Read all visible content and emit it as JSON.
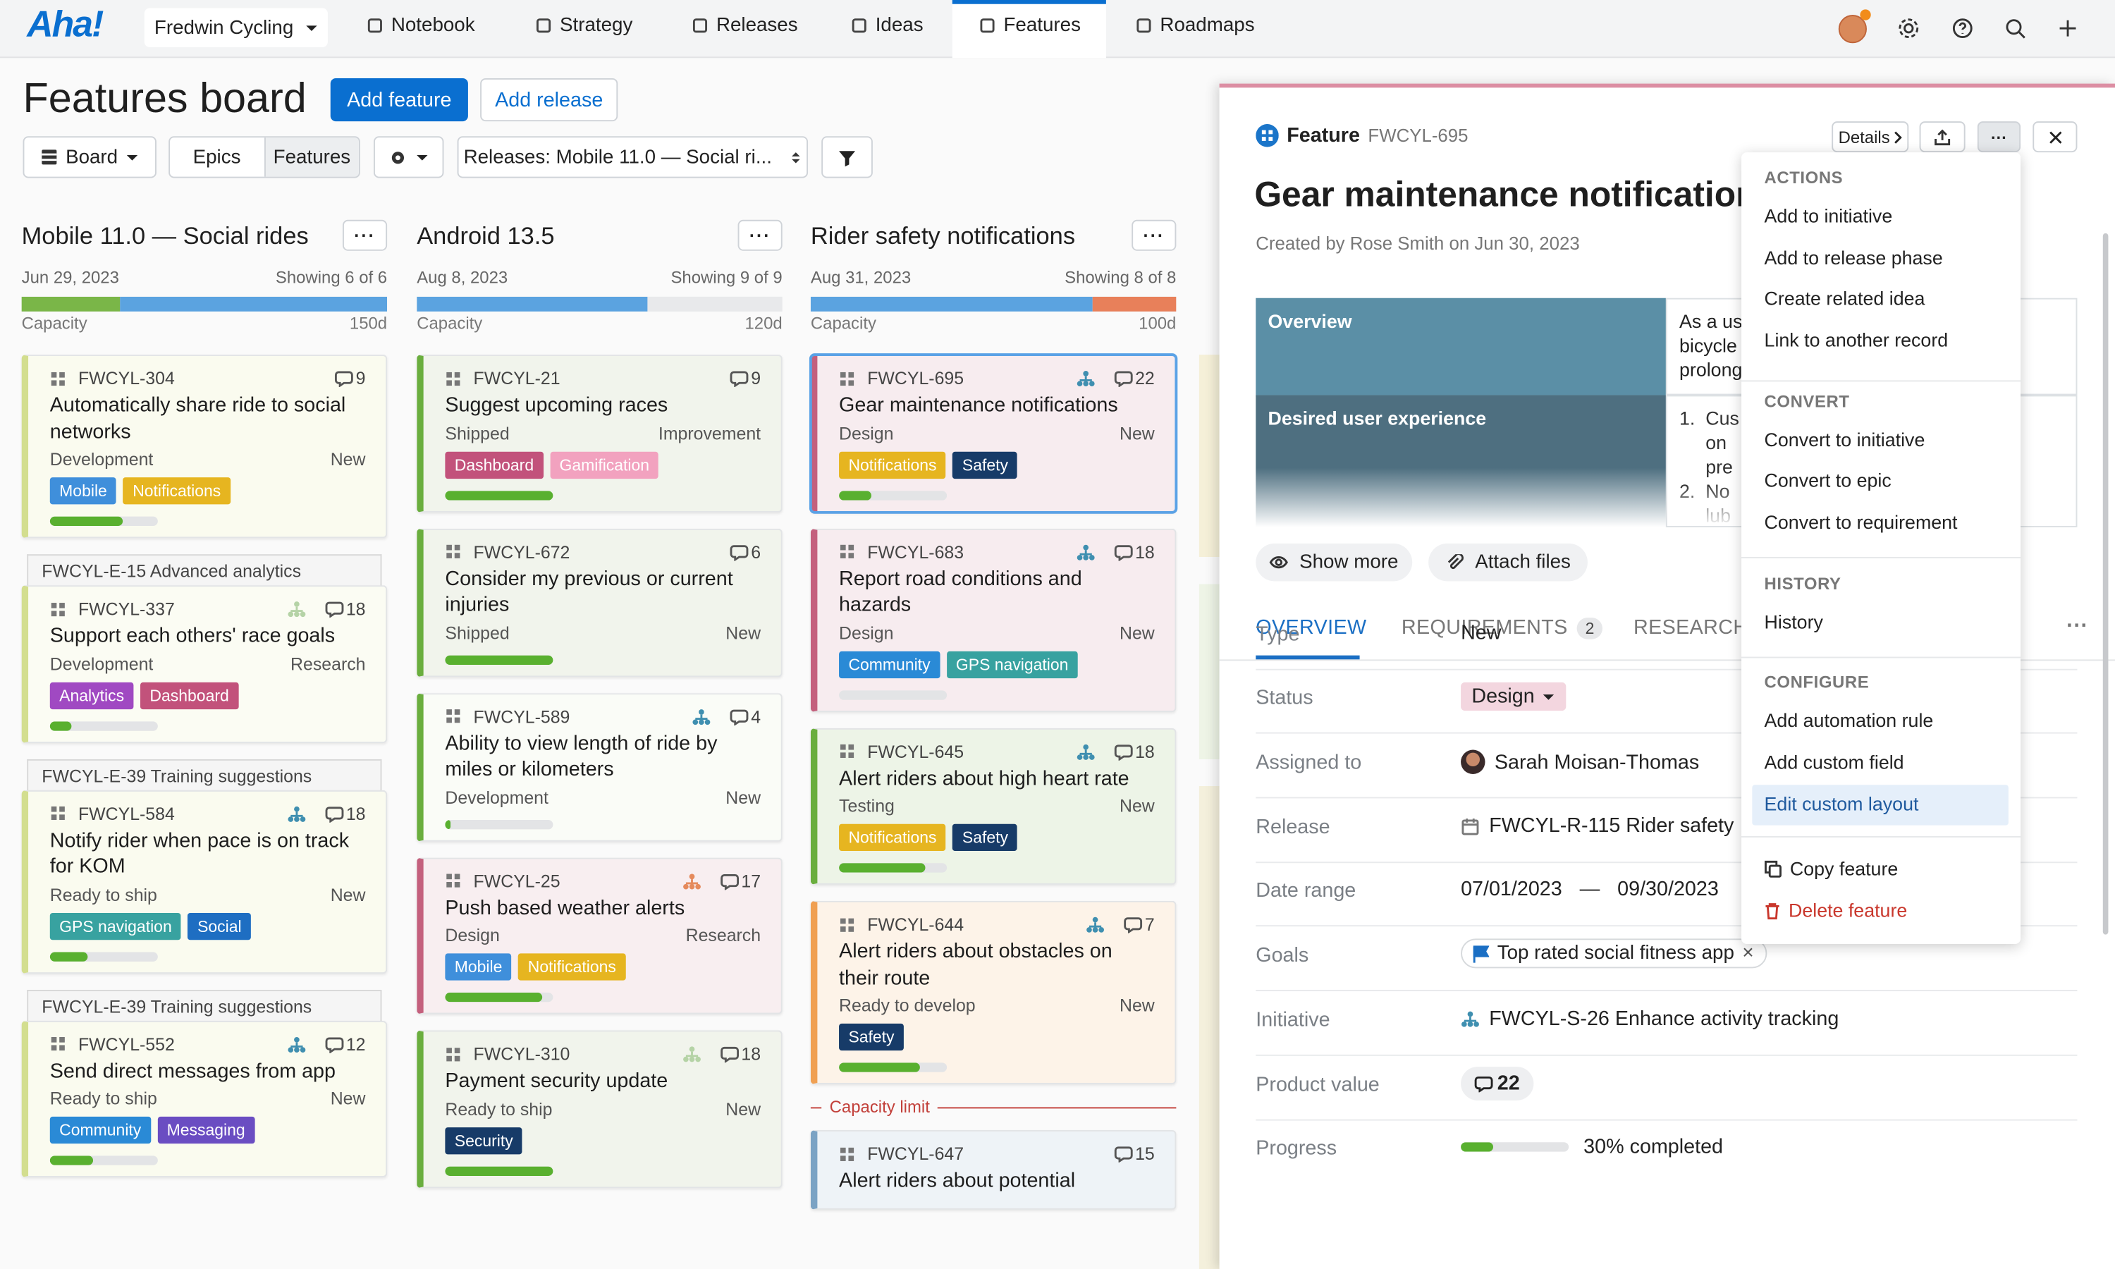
{
  "nav": {
    "logo": "Aha!",
    "workspace": "Fredwin Cycling",
    "tabs": [
      "Notebook",
      "Strategy",
      "Releases",
      "Ideas",
      "Features",
      "Roadmaps"
    ],
    "active_tab": 4
  },
  "header": {
    "title": "Features board",
    "buttons": [
      "Add feature",
      "Add release"
    ],
    "view": "Board",
    "toggle": [
      "Epics",
      "Features"
    ],
    "active_toggle": 1,
    "releases_filter": "Releases: Mobile 11.0 — Social ri..."
  },
  "columns": [
    {
      "name": "Mobile 11.0 — Social rides",
      "date": "Jun 29, 2023",
      "showing": "Showing 6 of 6",
      "capacity_label": "Capacity",
      "capacity": "150d",
      "usage": [
        {
          "color": "#7ab648",
          "fraction": 0.27
        },
        {
          "color": "#5ba3e0",
          "fraction": 0.73
        }
      ],
      "items": [
        {
          "card": {
            "id": "FWCYL-304",
            "score": 9,
            "title": "Automatically share ride to social networks",
            "status": "Development",
            "type": "New",
            "tags": [
              {
                "name": "Mobile",
                "color": "#3f8fdb"
              },
              {
                "name": "Notifications",
                "color": "#e6b520"
              }
            ],
            "progress": 0.68,
            "color": "#d3de8f",
            "bg": "#fafbef"
          }
        },
        {
          "epic": "FWCYL-E-15 Advanced analytics",
          "card": {
            "id": "FWCYL-337",
            "score": 18,
            "title": "Support each others' race goals",
            "status": "Development",
            "type": "Research",
            "tags": [
              {
                "name": "Analytics",
                "color": "#a049c2"
              },
              {
                "name": "Dashboard",
                "color": "#c2527b"
              }
            ],
            "progress": 0.2,
            "color": "#d3de8f",
            "bg": "#fbfcf3",
            "icon": "#b5d3a6"
          }
        },
        {
          "epic": "FWCYL-E-39 Training suggestions",
          "card": {
            "id": "FWCYL-584",
            "score": 18,
            "title": "Notify rider when pace is on track for KOM",
            "status": "Ready to ship",
            "type": "New",
            "tags": [
              {
                "name": "GPS navigation",
                "color": "#38a2a0"
              },
              {
                "name": "Social",
                "color": "#1e6ec2"
              }
            ],
            "progress": 0.35,
            "color": "#d3de8f",
            "bg": "#fafbef",
            "icon": "#3f8fb0"
          }
        },
        {
          "epic": "FWCYL-E-39 Training suggestions",
          "card": {
            "id": "FWCYL-552",
            "score": 12,
            "title": "Send direct messages from app",
            "status": "Ready to ship",
            "type": "New",
            "tags": [
              {
                "name": "Community",
                "color": "#2a8ad6"
              },
              {
                "name": "Messaging",
                "color": "#6a4dc2"
              }
            ],
            "progress": 0.4,
            "color": "#d3de8f",
            "bg": "#fafbef",
            "icon": "#3f8fb0"
          }
        }
      ]
    },
    {
      "name": "Android 13.5",
      "date": "Aug 8, 2023",
      "showing": "Showing 9 of 9",
      "capacity_label": "Capacity",
      "capacity": "120d",
      "usage": [
        {
          "color": "#5ba3e0",
          "fraction": 0.63
        }
      ],
      "items": [
        {
          "card": {
            "id": "FWCYL-21",
            "score": 9,
            "title": "Suggest upcoming races",
            "status": "Shipped",
            "type": "Improvement",
            "tags": [
              {
                "name": "Dashboard",
                "color": "#c2527b"
              },
              {
                "name": "Gamification",
                "color": "#f2a2bf"
              }
            ],
            "progress": 1,
            "color": "#6aae3e",
            "bg": "#f1f4ec"
          }
        },
        {
          "card": {
            "id": "FWCYL-672",
            "score": 6,
            "title": "Consider my previous or current injuries",
            "status": "Shipped",
            "type": "New",
            "tags": [],
            "progress": 1,
            "color": "#6aae3e",
            "bg": "#f1f4ec"
          }
        },
        {
          "card": {
            "id": "FWCYL-589",
            "score": 4,
            "title": "Ability to view length of ride by miles or kilometers",
            "status": "Development",
            "type": "New",
            "tags": [],
            "progress": 0.05,
            "color": "#6aae3e",
            "bg": "#fafcf7",
            "icon": "#3f8fb0"
          }
        },
        {
          "card": {
            "id": "FWCYL-25",
            "score": 17,
            "title": "Push based weather alerts",
            "status": "Design",
            "type": "Research",
            "tags": [
              {
                "name": "Mobile",
                "color": "#3f8fdb"
              },
              {
                "name": "Notifications",
                "color": "#e6b520"
              }
            ],
            "progress": 0.9,
            "color": "#c4607d",
            "bg": "#f8eef0",
            "icon": "#e58a5c"
          }
        },
        {
          "card": {
            "id": "FWCYL-310",
            "score": 18,
            "title": "Payment security update",
            "status": "Ready to ship",
            "type": "New",
            "tags": [
              {
                "name": "Security",
                "color": "#173b68"
              }
            ],
            "progress": 1,
            "color": "#6aae3e",
            "bg": "#f1f4ec",
            "icon": "#b5d3a6"
          }
        }
      ]
    },
    {
      "name": "Rider safety notifications",
      "date": "Aug 31, 2023",
      "showing": "Showing 8 of 8",
      "capacity_label": "Capacity",
      "capacity": "100d",
      "usage": [
        {
          "color": "#5ba3e0",
          "fraction": 0.77
        },
        {
          "color": "#e8805a",
          "fraction": 0.23
        }
      ],
      "items": [
        {
          "card": {
            "id": "FWCYL-695",
            "score": 22,
            "title": "Gear maintenance notifications",
            "status": "Design",
            "type": "New",
            "tags": [
              {
                "name": "Notifications",
                "color": "#e6b520"
              },
              {
                "name": "Safety",
                "color": "#173b68"
              }
            ],
            "progress": 0.3,
            "color": "#c4607d",
            "bg": "#f7ecef",
            "icon": "#3f8fb0",
            "selected": true
          }
        },
        {
          "card": {
            "id": "FWCYL-683",
            "score": 18,
            "title": "Report road conditions and hazards",
            "status": "Design",
            "type": "New",
            "tags": [
              {
                "name": "Community",
                "color": "#2a8ad6"
              },
              {
                "name": "GPS navigation",
                "color": "#38a2a0"
              }
            ],
            "progress": 0,
            "color": "#c4607d",
            "bg": "#f7ecef",
            "icon": "#3f8fb0"
          }
        },
        {
          "card": {
            "id": "FWCYL-645",
            "score": 18,
            "title": "Alert riders about high heart rate",
            "status": "Testing",
            "type": "New",
            "tags": [
              {
                "name": "Notifications",
                "color": "#e6b520"
              },
              {
                "name": "Safety",
                "color": "#173b68"
              }
            ],
            "progress": 0.8,
            "color": "#6aae3e",
            "bg": "#edf4e7",
            "icon": "#3f8fb0"
          }
        },
        {
          "card": {
            "id": "FWCYL-644",
            "score": 7,
            "title": "Alert riders about obstacles on their route",
            "status": "Ready to develop",
            "type": "New",
            "tags": [
              {
                "name": "Safety",
                "color": "#173b68"
              }
            ],
            "progress": 0.75,
            "color": "#f0a052",
            "bg": "#fdf3e8",
            "icon": "#3f8fb0"
          }
        },
        {
          "limit": "Capacity limit"
        },
        {
          "card": {
            "id": "FWCYL-647",
            "score": 15,
            "title": "Alert riders about potential",
            "status": "",
            "type": "",
            "tags": [],
            "color": "#7ba3c4",
            "bg": "#eef3f7"
          }
        }
      ]
    }
  ],
  "detail": {
    "kind": "Feature",
    "id": "FWCYL-695",
    "buttons": [
      "Details"
    ],
    "title": "Gear maintenance notifications",
    "created": "Created by Rose Smith on Jun 30, 2023",
    "table": [
      {
        "label": "Overview",
        "text": [
          "As a us",
          "bicycle",
          "prolong"
        ]
      },
      {
        "label": "Desired user experience",
        "text": [
          "1.  Cus",
          "     on",
          "     pre",
          "2.  No",
          "     lub"
        ]
      }
    ],
    "actions": [
      "Show more",
      "Attach files"
    ],
    "tabs": [
      {
        "name": "OVERVIEW"
      },
      {
        "name": "REQUIREMENTS",
        "count": 2
      },
      {
        "name": "RESEARCH"
      }
    ],
    "fields": [
      {
        "label": "Type",
        "value": "New"
      },
      {
        "label": "Status",
        "value": "Design"
      },
      {
        "label": "Assigned to",
        "value": "Sarah Moisan-Thomas"
      },
      {
        "label": "Release",
        "value": "FWCYL-R-115 Rider safety"
      },
      {
        "label": "Date range",
        "value": "07/01/2023",
        "separator": "—",
        "end": "09/30/2023"
      },
      {
        "label": "Goals",
        "value": "Top rated social fitness app"
      },
      {
        "label": "Initiative",
        "value": "FWCYL-S-26 Enhance activity tracking"
      },
      {
        "label": "Product value",
        "value": 22
      },
      {
        "label": "Progress",
        "value": 30,
        "value_label": "30% completed"
      }
    ]
  },
  "menu": {
    "sections": [
      {
        "heading": "ACTIONS",
        "items": [
          "Add to initiative",
          "Add to release phase",
          "Create related idea",
          "Link to another record"
        ]
      },
      {
        "heading": "CONVERT",
        "items": [
          "Convert to initiative",
          "Convert to epic",
          "Convert to requirement"
        ]
      },
      {
        "heading": "HISTORY",
        "items": [
          "History"
        ]
      },
      {
        "heading": "CONFIGURE",
        "items": [
          "Add automation rule",
          "Add custom field",
          "Edit custom layout"
        ]
      },
      {
        "items": [
          "Copy feature",
          "Delete feature"
        ]
      }
    ],
    "highlighted": [
      3,
      2
    ]
  }
}
